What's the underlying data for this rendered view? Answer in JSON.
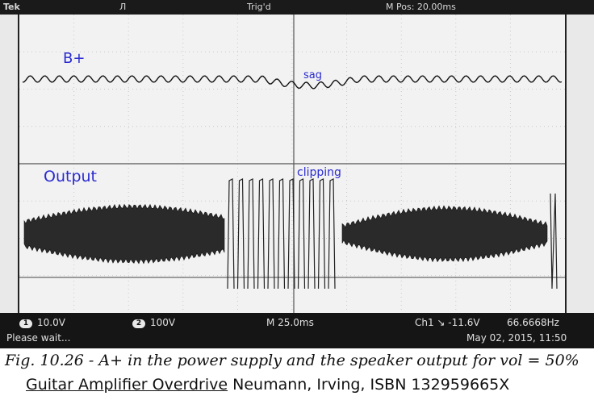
{
  "scope": {
    "topbar": {
      "left": "Tek",
      "mode": "Л",
      "trigger": "Trig'd",
      "position": "M Pos: 20.00ms"
    },
    "annotations": {
      "b_plus": "B+",
      "sag": "sag",
      "output": "Output",
      "clipping": "clipping"
    },
    "status": {
      "ch1_num": "1",
      "ch1_scale": "10.0V",
      "ch2_num": "2",
      "ch2_scale": "100V",
      "timebase": "M 25.0ms",
      "trigger": "Ch1 ↘ -11.6V",
      "frequency": "66.6668Hz",
      "message": "Please wait...",
      "datetime": "May 02, 2015, 11:50"
    }
  },
  "caption": "Fig. 10.26 - A+ in the power supply and the speaker output for vol = 50%",
  "credit": {
    "book": "Guitar Amplifier Overdrive",
    "authors": "Neumann, Irving, ISBN 132959665X"
  }
}
